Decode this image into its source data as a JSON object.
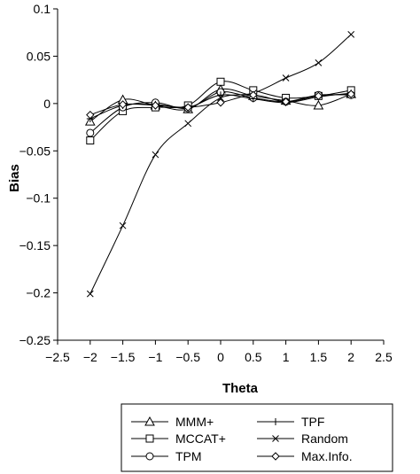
{
  "chart_data": {
    "type": "line",
    "title": "",
    "xlabel": "Theta",
    "ylabel": "Bias",
    "xlim": [
      -2.5,
      2.5
    ],
    "ylim": [
      -0.25,
      0.1
    ],
    "xticks": [
      -2.5,
      -2,
      -1.5,
      -1,
      -0.5,
      0,
      0.5,
      1,
      1.5,
      2,
      2.5
    ],
    "yticks": [
      0.1,
      0.05,
      0,
      -0.05,
      -0.1,
      -0.15,
      -0.2,
      -0.25
    ],
    "xtick_labels": [
      "−2.5",
      "−2",
      "−1.5",
      "−1",
      "−0.5",
      "0",
      "0.5",
      "1",
      "1.5",
      "2",
      "2.5"
    ],
    "ytick_labels": [
      "0.1",
      "0.05",
      "0",
      "−0.05",
      "−0.1",
      "−0.15",
      "−0.2",
      "−0.25"
    ],
    "grid": false,
    "legend_position": "bottom",
    "x": [
      -2,
      -1.5,
      -1,
      -0.5,
      0,
      0.5,
      1,
      1.5,
      2
    ],
    "series": [
      {
        "name": "MMM+",
        "marker": "triangle",
        "values": [
          -0.019,
          0.004,
          -0.002,
          -0.006,
          0.015,
          0.008,
          0.003,
          -0.002,
          0.01
        ]
      },
      {
        "name": "MCCAT+",
        "marker": "square",
        "values": [
          -0.039,
          -0.008,
          -0.004,
          -0.002,
          0.023,
          0.014,
          0.006,
          0.008,
          0.014
        ]
      },
      {
        "name": "TPM",
        "marker": "circle",
        "values": [
          -0.031,
          -0.004,
          0.001,
          -0.005,
          0.012,
          0.006,
          0.002,
          0.009,
          0.009
        ]
      },
      {
        "name": "TPF",
        "marker": "plus",
        "values": [
          -0.016,
          -0.002,
          -0.001,
          -0.004,
          0.009,
          0.005,
          0.001,
          0.007,
          0.011
        ]
      },
      {
        "name": "Random",
        "marker": "x",
        "values": [
          -0.201,
          -0.129,
          -0.054,
          -0.021,
          0.006,
          0.011,
          0.027,
          0.043,
          0.073
        ]
      },
      {
        "name": "Max.Info.",
        "marker": "diamond",
        "values": [
          -0.012,
          -0.001,
          -0.002,
          -0.004,
          0.001,
          0.009,
          0.002,
          0.008,
          0.01
        ]
      }
    ]
  }
}
